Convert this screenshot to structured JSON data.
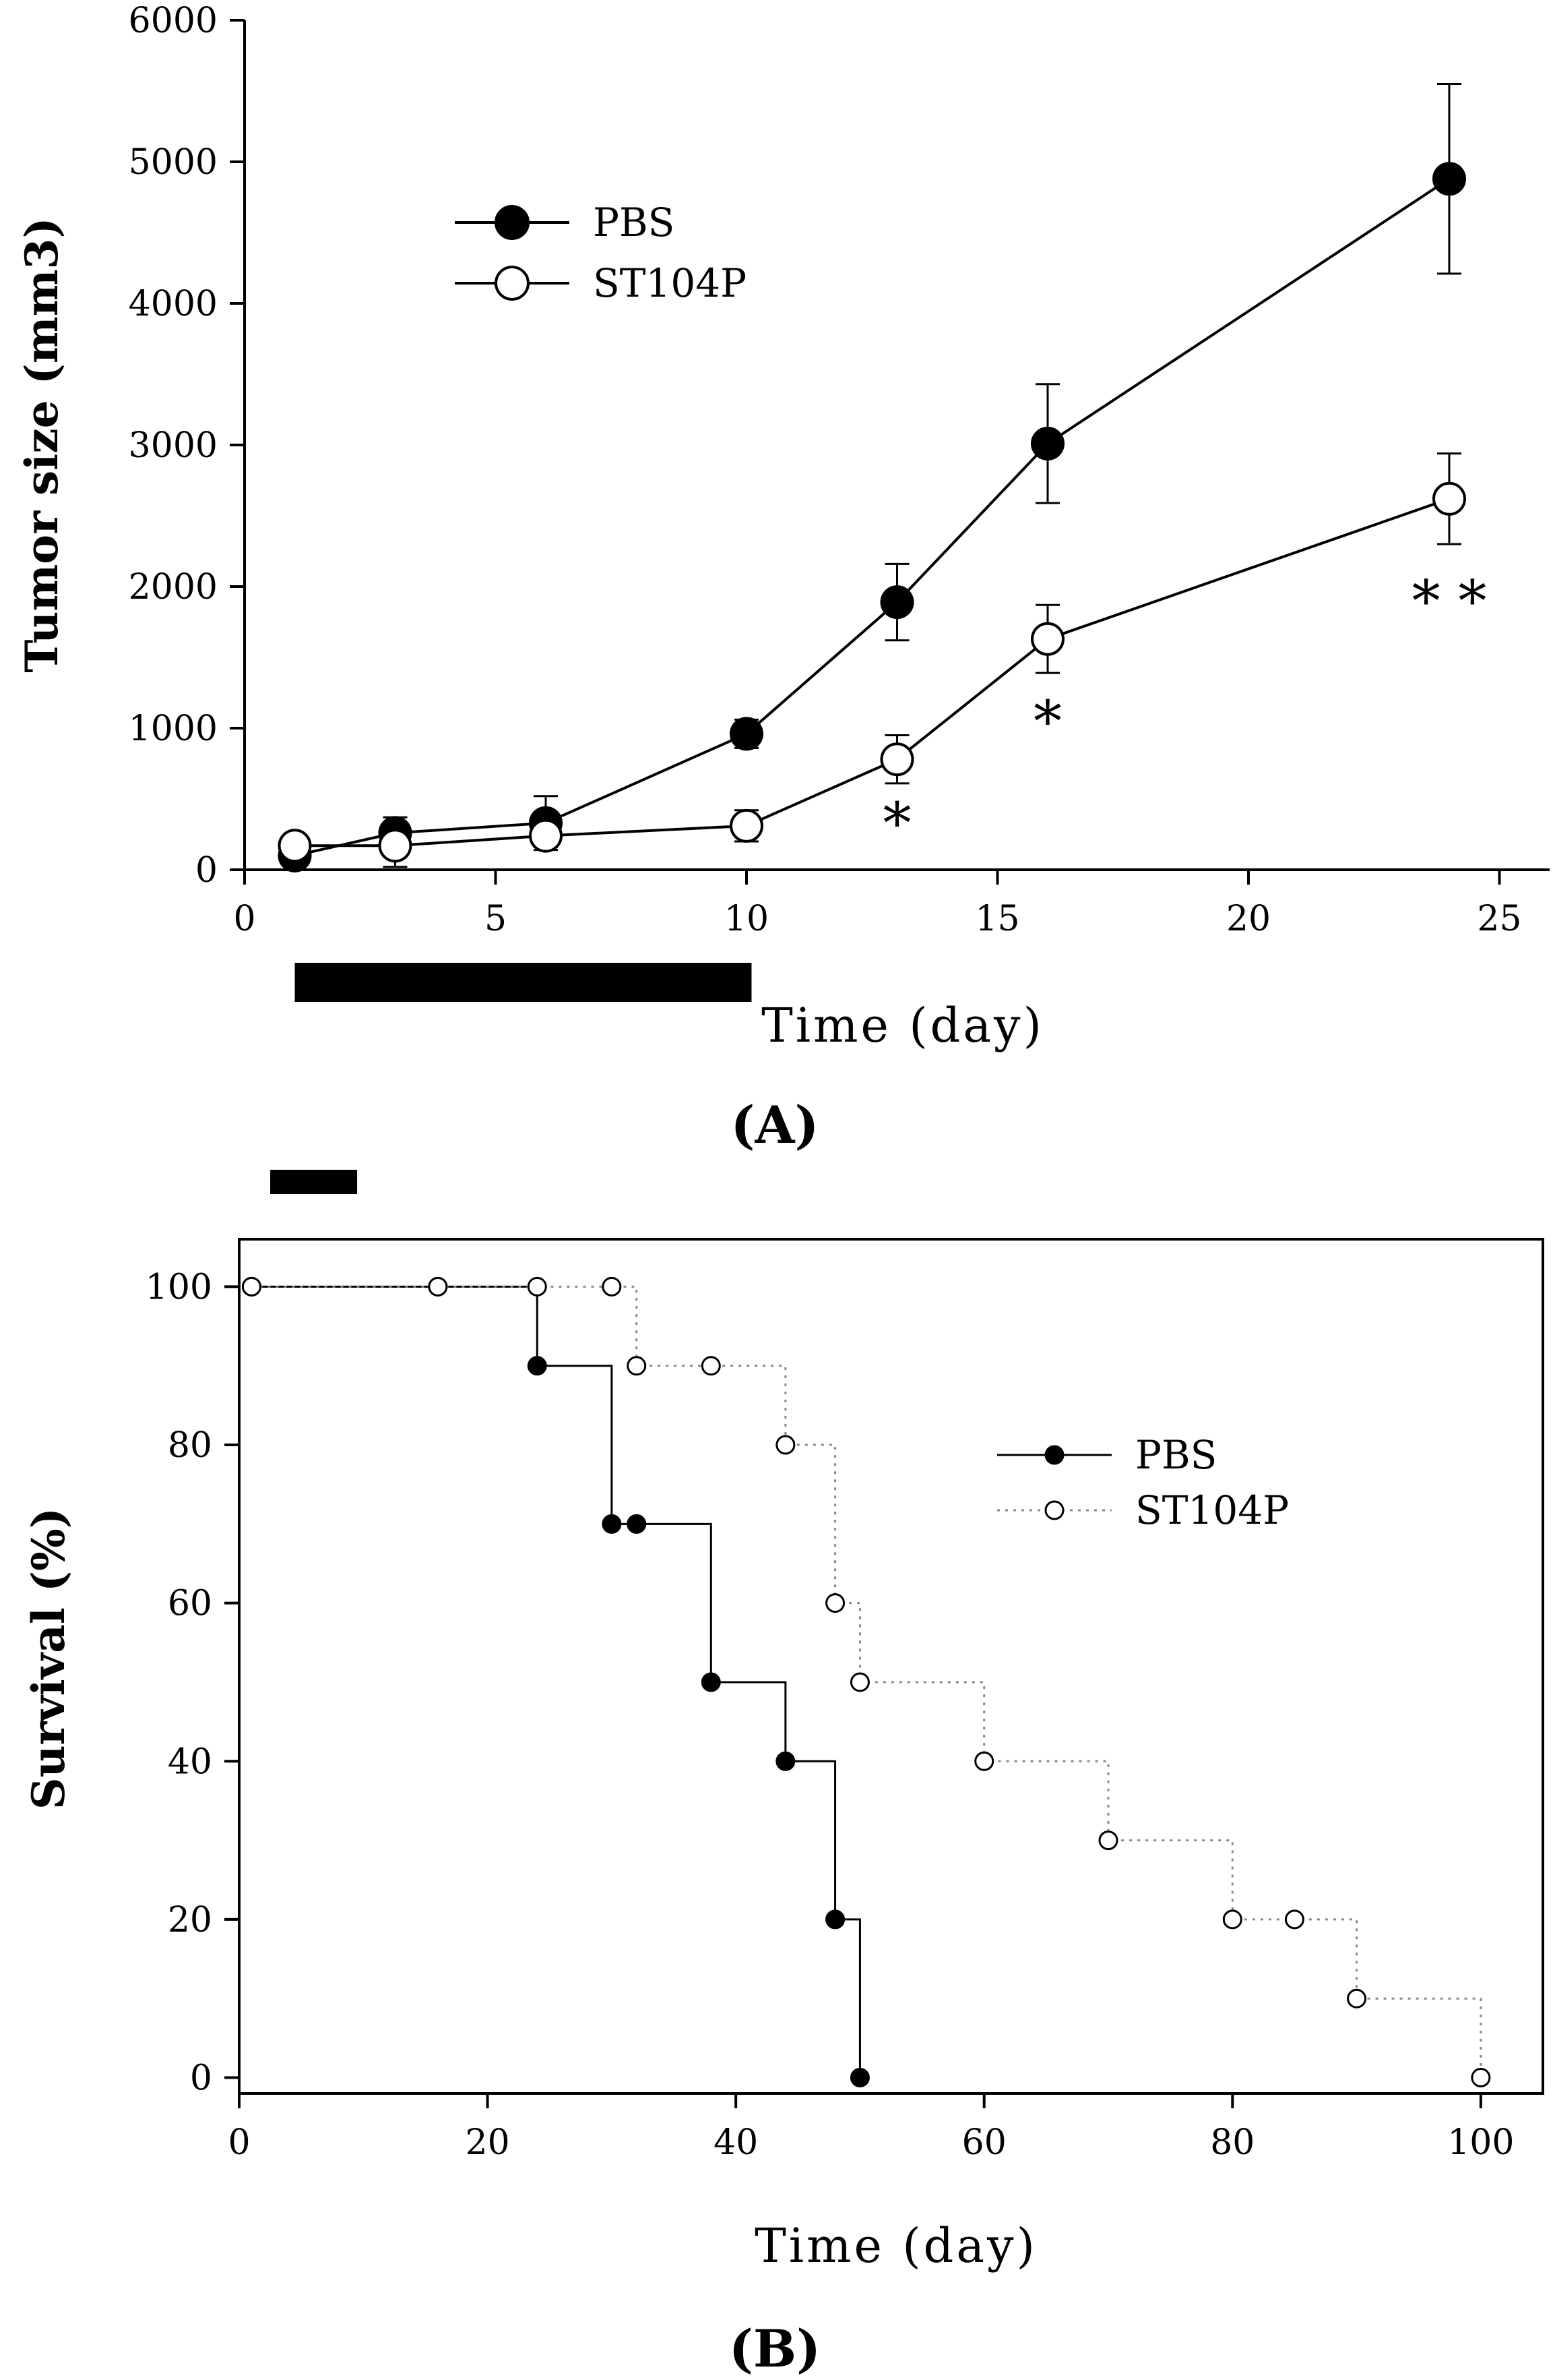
{
  "chart_data": [
    {
      "type": "line",
      "panel_label": "(A)",
      "xlabel": "Time (day)",
      "ylabel": "Tumor size (mm3)",
      "xlim": [
        0,
        26
      ],
      "ylim": [
        0,
        6000
      ],
      "x_ticks": [
        0,
        5,
        10,
        15,
        20,
        25
      ],
      "y_ticks": [
        0,
        1000,
        2000,
        3000,
        4000,
        5000,
        6000
      ],
      "grid": false,
      "legend_position": "upper-left",
      "treatment_bar": [
        1,
        10.1
      ],
      "series": [
        {
          "name": "PBS",
          "marker": "filled-circle",
          "color": "#000000",
          "x": [
            1,
            3,
            6,
            10,
            13,
            16,
            24
          ],
          "y": [
            100,
            260,
            330,
            960,
            1890,
            3010,
            4880
          ],
          "err": [
            50,
            110,
            190,
            100,
            270,
            420,
            670
          ]
        },
        {
          "name": "ST104P",
          "marker": "open-circle",
          "color": "#000000",
          "x": [
            1,
            3,
            6,
            10,
            13,
            16,
            24
          ],
          "y": [
            170,
            170,
            240,
            310,
            780,
            1630,
            2620
          ],
          "err": [
            60,
            150,
            80,
            110,
            170,
            240,
            320
          ]
        }
      ],
      "annotations": [
        {
          "x": 13,
          "y": 380,
          "text": "*"
        },
        {
          "x": 16,
          "y": 1100,
          "text": "*"
        },
        {
          "x": 24,
          "y": 1950,
          "text": "* *"
        }
      ]
    },
    {
      "type": "line",
      "panel_label": "(B)",
      "xlabel": "Time (day)",
      "ylabel": "Survival (%)",
      "xlim": [
        0,
        105
      ],
      "ylim": [
        -2,
        106
      ],
      "x_ticks": [
        0,
        20,
        40,
        60,
        80,
        100
      ],
      "y_ticks": [
        0,
        20,
        40,
        60,
        80,
        100
      ],
      "grid": false,
      "legend_position": "center-right",
      "step": true,
      "treatment_bar": [
        2.5,
        9.5
      ],
      "series": [
        {
          "name": "PBS",
          "marker": "filled-circle",
          "line_style": "solid",
          "color": "#000000",
          "x": [
            1,
            16,
            24,
            30,
            32,
            38,
            44,
            48,
            50
          ],
          "y": [
            100,
            100,
            90,
            70,
            70,
            50,
            40,
            20,
            0
          ]
        },
        {
          "name": "ST104P",
          "marker": "open-circle",
          "line_style": "dotted",
          "color": "#000000",
          "x": [
            1,
            16,
            24,
            30,
            32,
            38,
            44,
            48,
            50,
            60,
            70,
            80,
            85,
            90,
            100
          ],
          "y": [
            100,
            100,
            100,
            100,
            90,
            90,
            80,
            60,
            50,
            40,
            30,
            20,
            20,
            10,
            0
          ]
        }
      ]
    }
  ]
}
